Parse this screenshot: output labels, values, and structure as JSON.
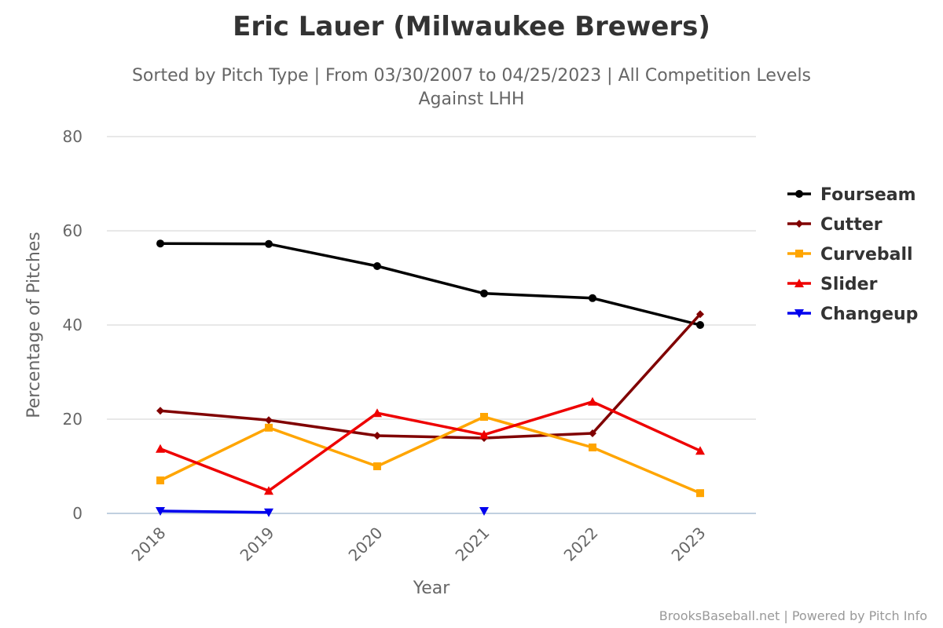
{
  "chart_data": {
    "type": "line",
    "title": "Eric Lauer (Milwaukee Brewers)",
    "subtitle": [
      "Sorted by Pitch Type | From 03/30/2007 to 04/25/2023 | All Competition Levels",
      "Against LHH"
    ],
    "xlabel": "Year",
    "ylabel": "Percentage of Pitches",
    "categories": [
      "2018",
      "2019",
      "2020",
      "2021",
      "2022",
      "2023"
    ],
    "ylim": [
      0,
      80
    ],
    "yticks": [
      0,
      20,
      40,
      60,
      80
    ],
    "grid": true,
    "legend_position": "right",
    "series": [
      {
        "name": "Fourseam",
        "color": "#000000",
        "marker": "circle",
        "values": [
          57.3,
          57.2,
          52.5,
          46.7,
          45.7,
          40.0
        ]
      },
      {
        "name": "Cutter",
        "color": "#800000",
        "marker": "diamond",
        "values": [
          21.8,
          19.8,
          16.5,
          16.0,
          17.0,
          42.3
        ]
      },
      {
        "name": "Curveball",
        "color": "#FFA500",
        "marker": "square",
        "values": [
          7.0,
          18.2,
          10.0,
          20.5,
          14.0,
          4.3
        ]
      },
      {
        "name": "Slider",
        "color": "#EE0000",
        "marker": "triangle",
        "values": [
          13.7,
          4.8,
          21.3,
          16.7,
          23.7,
          13.3
        ]
      },
      {
        "name": "Changeup",
        "color": "#0000EE",
        "marker": "triangle-down",
        "values": [
          0.5,
          0.2,
          null,
          0.5,
          null,
          null
        ]
      }
    ]
  },
  "credit": "BrooksBaseball.net | Powered by Pitch Info"
}
